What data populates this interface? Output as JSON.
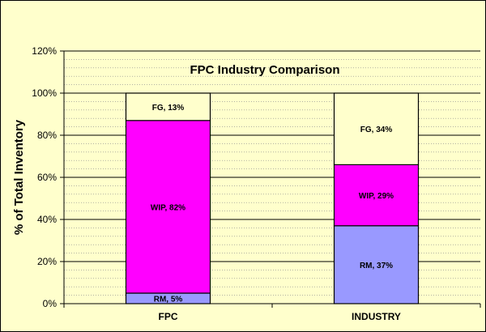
{
  "chart_data": {
    "type": "bar",
    "stacked": true,
    "title": "FPC Industry Comparison",
    "xlabel": "",
    "ylabel": "% of Total Inventory",
    "categories": [
      "FPC",
      "INDUSTRY"
    ],
    "ylim": [
      0,
      120
    ],
    "yticks": [
      "0%",
      "20%",
      "40%",
      "60%",
      "80%",
      "100%",
      "120%"
    ],
    "tick_values": [
      0,
      20,
      40,
      60,
      80,
      100,
      120
    ],
    "grid": true,
    "legend": "none",
    "series": [
      {
        "name": "RM",
        "color": "#9999ff",
        "values": [
          5,
          37
        ],
        "labels": [
          "RM, 5%",
          "RM, 37%"
        ]
      },
      {
        "name": "WIP",
        "color": "#ff00ff",
        "values": [
          82,
          29
        ],
        "labels": [
          "WIP, 82%",
          "WIP, 29%"
        ]
      },
      {
        "name": "FG",
        "color": "#ffffcc",
        "values": [
          13,
          34
        ],
        "labels": [
          "FG, 13%",
          "FG, 34%"
        ]
      }
    ]
  }
}
